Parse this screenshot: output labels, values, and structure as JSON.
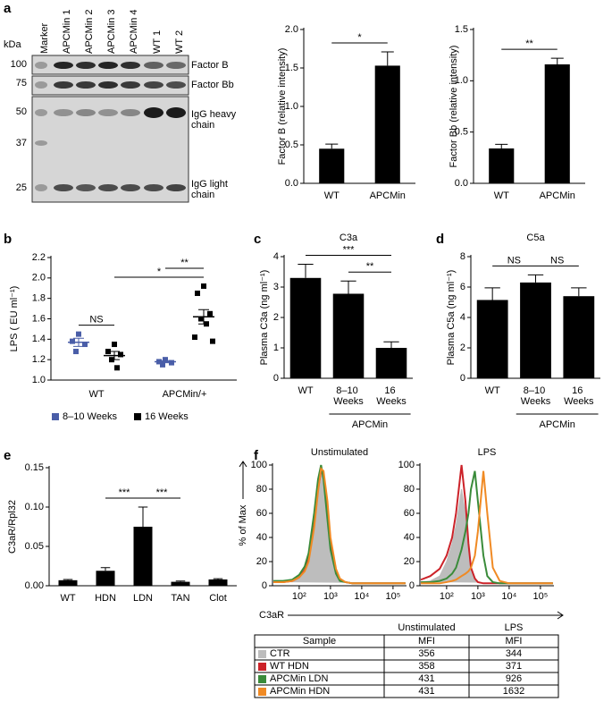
{
  "blot": {
    "panel_label": "a",
    "unit": "kDa",
    "lanes": [
      "Marker",
      "APCMin 1",
      "APCMin 2",
      "APCMin 3",
      "APCMin 4",
      "WT 1",
      "WT 2"
    ],
    "markers": [
      100,
      75,
      50,
      37,
      25
    ],
    "bands": [
      "Factor B",
      "Factor Bb",
      "IgG heavy chain",
      "IgG light chain"
    ]
  },
  "chart_data": [
    {
      "type": "bar",
      "ylabel": "Factor B (relative intensity)",
      "categories": [
        "WT",
        "APCMin"
      ],
      "values": [
        0.45,
        1.53
      ],
      "errors": [
        0.06,
        0.18
      ],
      "color": "#000000",
      "ylim": [
        0,
        2
      ],
      "yticks": [
        {
          "value": 0,
          "label": "0.0"
        },
        0.5,
        {
          "value": 1,
          "label": "1.0"
        },
        1.5,
        {
          "value": 2,
          "label": "2.0"
        }
      ],
      "annotations": [
        "*"
      ]
    },
    {
      "type": "bar",
      "ylabel": "Factor Bb (relative intensity)",
      "categories": [
        "WT",
        "APCMin"
      ],
      "values": [
        0.34,
        1.16
      ],
      "errors": [
        0.04,
        0.06
      ],
      "color": "#000000",
      "ylim": [
        0,
        1.5
      ],
      "yticks": [
        {
          "value": 0,
          "label": "0.0"
        },
        0.5,
        {
          "value": 1,
          "label": "1.0"
        },
        1.5
      ],
      "annotations": [
        "**"
      ]
    },
    {
      "type": "scatter",
      "panel_label": "b",
      "ylabel": "LPS ( EU ml⁻¹)",
      "categories": [
        "WT",
        "APCMin/+"
      ],
      "ylim": [
        1,
        2.2
      ],
      "yticks": [
        {
          "value": 1,
          "label": "1.0"
        },
        1.2,
        1.4,
        1.6,
        1.8,
        {
          "value": 2,
          "label": "2.0"
        },
        2.2
      ],
      "series": [
        {
          "name": "8–10 Weeks",
          "color": "#4a5ea8",
          "values": [
            [
              1.45,
              1.38,
              1.35,
              1.28
            ],
            [
              1.2,
              1.18,
              1.17,
              1.15
            ]
          ],
          "mean": [
            1.37,
            1.18
          ],
          "sem": [
            0.04,
            0.01
          ]
        },
        {
          "name": "16 Weeks",
          "color": "#000000",
          "values": [
            [
              1.35,
              1.28,
              1.25,
              1.2,
              1.12
            ],
            [
              1.92,
              1.85,
              1.65,
              1.6,
              1.55,
              1.42,
              1.38
            ]
          ],
          "mean": [
            1.24,
            1.62
          ],
          "sem": [
            0.04,
            0.07
          ]
        }
      ],
      "annotations": [
        "NS",
        "*",
        "**"
      ]
    },
    {
      "type": "bar",
      "panel_label": "c",
      "title": "C3a",
      "ylabel": "Plasma C3a (ng ml⁻¹)",
      "categories": [
        "WT",
        "8–10 Weeks",
        "16 Weeks"
      ],
      "group_label": "APCMin",
      "values": [
        3.3,
        2.78,
        1.0
      ],
      "errors": [
        0.45,
        0.42,
        0.2
      ],
      "color": "#000000",
      "ylim": [
        0,
        4
      ],
      "yticks": [
        0,
        1,
        2,
        3,
        4
      ],
      "annotations": [
        "**",
        "***"
      ]
    },
    {
      "type": "bar",
      "panel_label": "d",
      "title": "C5a",
      "ylabel": "Plasma C5a (ng ml⁻¹)",
      "categories": [
        "WT",
        "8–10 Weeks",
        "16 Weeks"
      ],
      "group_label": "APCMin",
      "values": [
        5.15,
        6.3,
        5.4
      ],
      "errors": [
        0.8,
        0.5,
        0.55
      ],
      "color": "#000000",
      "ylim": [
        0,
        8
      ],
      "yticks": [
        0,
        2,
        4,
        6,
        8
      ],
      "annotations": [
        "NS",
        "NS"
      ]
    },
    {
      "type": "bar",
      "panel_label": "e",
      "ylabel": "C3aR/Rpl32",
      "categories": [
        "WT",
        "HDN",
        "LDN",
        "TAN",
        "Clot"
      ],
      "values": [
        0.007,
        0.019,
        0.075,
        0.005,
        0.008
      ],
      "errors": [
        0.001,
        0.004,
        0.025,
        0.001,
        0.001
      ],
      "color": "#000000",
      "ylim": [
        0,
        0.15
      ],
      "yticks": [
        {
          "value": 0,
          "label": "0.00"
        },
        0.05,
        {
          "value": 0.1,
          "label": "0.10"
        },
        0.15
      ],
      "annotations": [
        "***",
        "***"
      ]
    },
    {
      "type": "line",
      "panel_label": "f",
      "title": "Unstimulated",
      "ylabel": "% of Max",
      "xlabel": "C3aR",
      "xscale": "log",
      "x": [
        15,
        30,
        60,
        100,
        150,
        200,
        300,
        400,
        500,
        600,
        800,
        1000,
        1500,
        2000,
        3000,
        5000,
        10000,
        100000,
        250000
      ],
      "xlim": [
        14,
        270000
      ],
      "xticks": [
        {
          "value": 100,
          "label": "10²"
        },
        {
          "value": 1000,
          "label": "10³"
        },
        {
          "value": 10000,
          "label": "10⁴"
        },
        {
          "value": 100000,
          "label": "10⁵"
        }
      ],
      "ylim": [
        0,
        100
      ],
      "yticks": [
        0,
        20,
        40,
        60,
        80,
        100
      ],
      "series": [
        {
          "color": "#bdbdbd",
          "filled": true,
          "values": [
            3,
            3,
            4,
            8,
            15,
            25,
            55,
            85,
            98,
            90,
            60,
            35,
            12,
            5,
            3,
            2,
            2,
            2,
            2
          ]
        },
        {
          "color": "#cc2229",
          "values": [
            3,
            3,
            4,
            7,
            13,
            22,
            50,
            80,
            95,
            92,
            65,
            35,
            12,
            5,
            3,
            2,
            2,
            2,
            2
          ]
        },
        {
          "color": "#3a8b3a",
          "values": [
            4,
            4,
            5,
            9,
            16,
            27,
            60,
            88,
            100,
            88,
            55,
            30,
            10,
            4,
            3,
            2,
            2,
            2,
            2
          ]
        },
        {
          "color": "#f08a24",
          "values": [
            3,
            3,
            4,
            7,
            12,
            20,
            48,
            78,
            97,
            95,
            70,
            40,
            14,
            6,
            3,
            2,
            2,
            2,
            2
          ]
        }
      ]
    },
    {
      "type": "line",
      "title": "LPS",
      "xscale": "log",
      "x": [
        15,
        30,
        60,
        100,
        150,
        200,
        300,
        400,
        500,
        600,
        800,
        1000,
        1500,
        2000,
        3000,
        5000,
        10000,
        100000,
        250000
      ],
      "xlim": [
        14,
        270000
      ],
      "xticks": [
        {
          "value": 100,
          "label": "10²"
        },
        {
          "value": 1000,
          "label": "10³"
        },
        {
          "value": 10000,
          "label": "10⁴"
        },
        {
          "value": 100000,
          "label": "10⁵"
        }
      ],
      "ylim": [
        0,
        100
      ],
      "yticks": [
        0,
        20,
        40,
        60,
        80,
        100
      ],
      "series": [
        {
          "color": "#bdbdbd",
          "filled": true,
          "values": [
            3,
            4,
            8,
            20,
            35,
            50,
            80,
            60,
            30,
            15,
            6,
            3,
            2,
            2,
            2,
            2,
            2,
            2,
            2
          ]
        },
        {
          "color": "#cc2229",
          "values": [
            5,
            8,
            14,
            25,
            40,
            60,
            100,
            70,
            35,
            15,
            6,
            3,
            2,
            2,
            2,
            2,
            2,
            2,
            2
          ]
        },
        {
          "color": "#3a8b3a",
          "values": [
            3,
            3,
            4,
            6,
            10,
            15,
            30,
            45,
            60,
            80,
            95,
            70,
            25,
            8,
            3,
            2,
            2,
            2,
            2
          ]
        },
        {
          "color": "#f08a24",
          "values": [
            2,
            2,
            2,
            3,
            4,
            5,
            8,
            10,
            12,
            15,
            25,
            45,
            95,
            60,
            15,
            4,
            2,
            2,
            2
          ]
        }
      ]
    }
  ],
  "table": {
    "col_groups": [
      "Unstimulated",
      "LPS"
    ],
    "columns": [
      "Sample",
      "MFI",
      "MFI"
    ],
    "rows": [
      {
        "sample": "CTR",
        "color": "#bdbdbd",
        "unstimulated": 356,
        "lps": 344
      },
      {
        "sample": "WT HDN",
        "color": "#cc2229",
        "unstimulated": 358,
        "lps": 371
      },
      {
        "sample": "APCMin LDN",
        "color": "#3a8b3a",
        "unstimulated": 431,
        "lps": 926
      },
      {
        "sample": "APCMin HDN",
        "color": "#f08a24",
        "unstimulated": 431,
        "lps": 1632
      }
    ]
  }
}
